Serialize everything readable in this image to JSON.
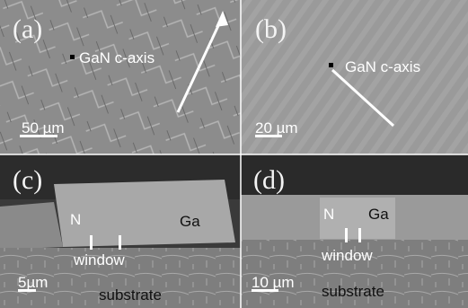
{
  "panels": [
    {
      "label": "(a)",
      "annotation": "GaN c-axis",
      "scale": "50 µm"
    },
    {
      "label": "(b)",
      "annotation": "GaN c-axis",
      "scale": "20 µm"
    },
    {
      "label": "(c)",
      "left": "N",
      "right": "Ga",
      "window": "window",
      "scale": "5µm",
      "substrate": "substrate"
    },
    {
      "label": "(d)",
      "left": "N",
      "right": "Ga",
      "window": "window",
      "scale": "10 µm",
      "substrate": "substrate"
    }
  ]
}
